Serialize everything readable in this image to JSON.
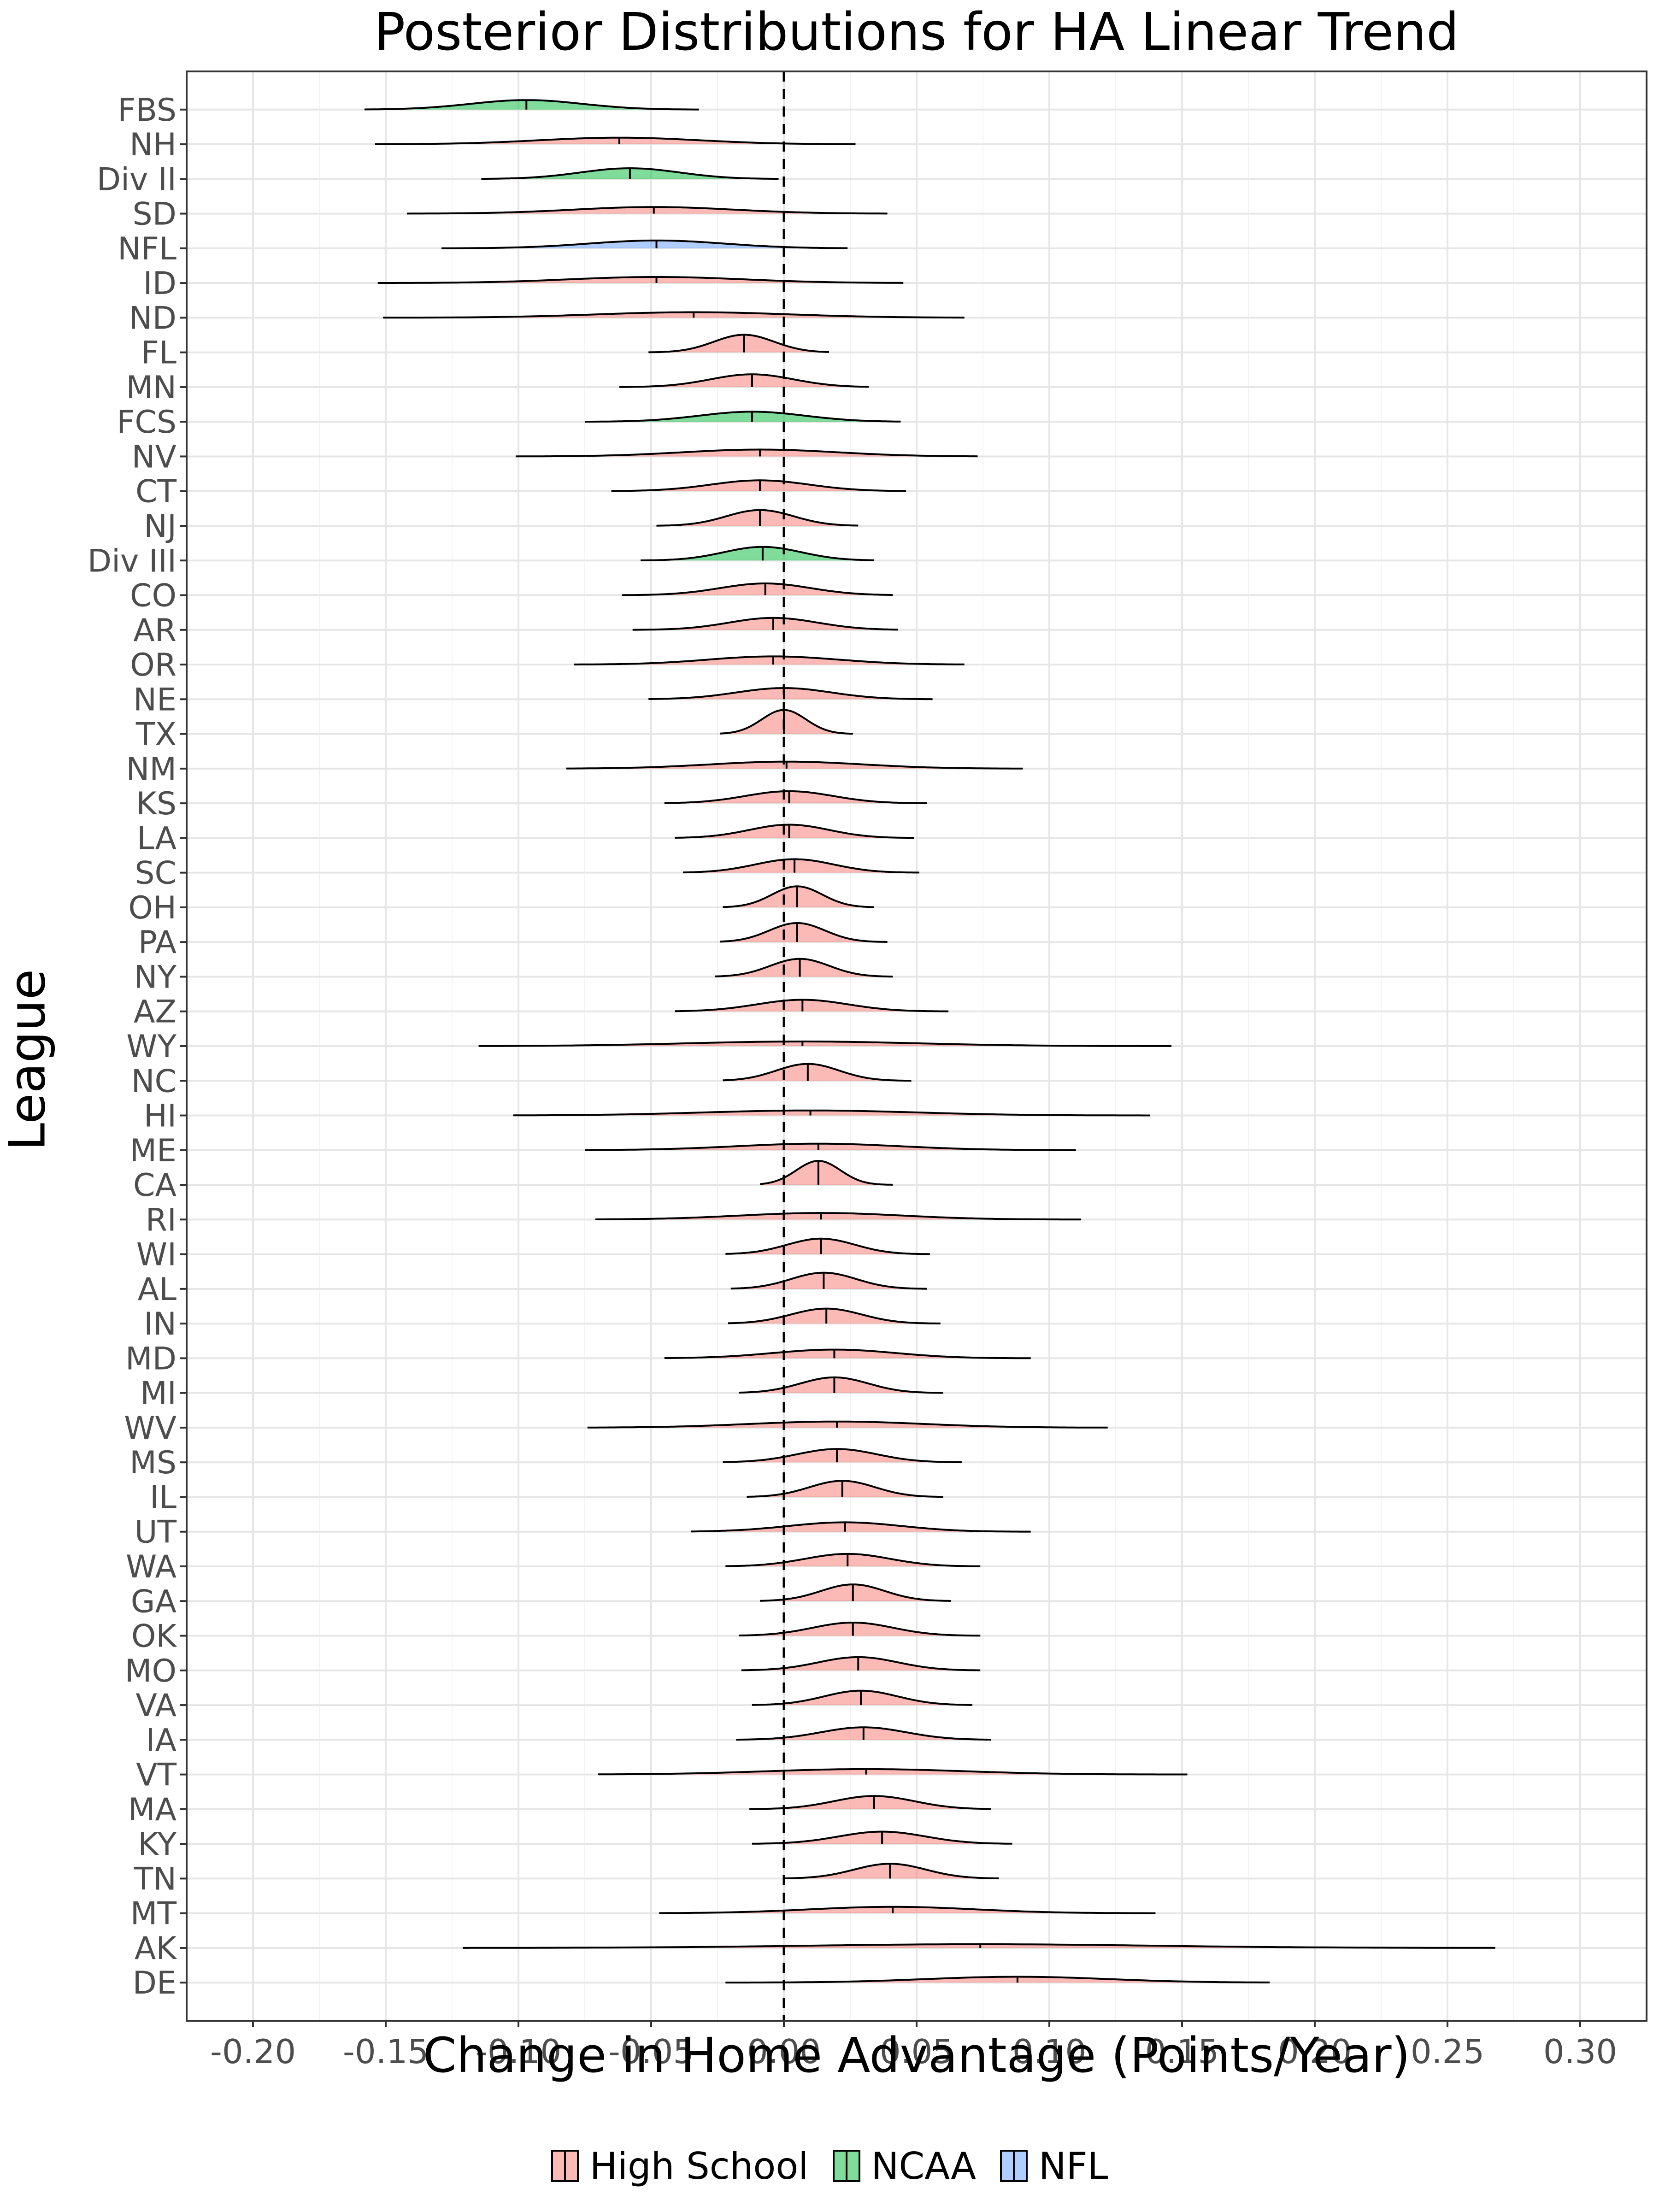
{
  "chart_data": {
    "type": "ridgeline",
    "title": "Posterior Distributions for HA Linear Trend",
    "xlabel": "Change in Home Advantage (Points/Year)",
    "ylabel": "League",
    "xlim": [
      -0.225,
      0.325
    ],
    "x_ticks": [
      -0.2,
      -0.15,
      -0.1,
      -0.05,
      0.0,
      0.05,
      0.1,
      0.15,
      0.2,
      0.25,
      0.3
    ],
    "x_tick_labels": [
      "-0.20",
      "-0.15",
      "-0.10",
      "-0.05",
      "0.00",
      "0.05",
      "0.10",
      "0.15",
      "0.20",
      "0.25",
      "0.30"
    ],
    "reference_line": 0.0,
    "grid": true,
    "legend_position": "bottom",
    "legend": [
      {
        "label": "High School",
        "color": "#F8766D"
      },
      {
        "label": "NCAA",
        "color": "#00BA38"
      },
      {
        "label": "NFL",
        "color": "#619CFF"
      }
    ],
    "series": [
      {
        "league": "FBS",
        "group": "NCAA",
        "mean": -0.097,
        "min": -0.158,
        "max": -0.032
      },
      {
        "league": "NH",
        "group": "High School",
        "mean": -0.062,
        "min": -0.154,
        "max": 0.027
      },
      {
        "league": "Div II",
        "group": "NCAA",
        "mean": -0.058,
        "min": -0.114,
        "max": -0.002
      },
      {
        "league": "SD",
        "group": "High School",
        "mean": -0.049,
        "min": -0.142,
        "max": 0.039
      },
      {
        "league": "NFL",
        "group": "NFL",
        "mean": -0.048,
        "min": -0.129,
        "max": 0.024
      },
      {
        "league": "ID",
        "group": "High School",
        "mean": -0.048,
        "min": -0.153,
        "max": 0.045
      },
      {
        "league": "ND",
        "group": "High School",
        "mean": -0.034,
        "min": -0.151,
        "max": 0.068
      },
      {
        "league": "FL",
        "group": "High School",
        "mean": -0.015,
        "min": -0.051,
        "max": 0.017
      },
      {
        "league": "MN",
        "group": "High School",
        "mean": -0.012,
        "min": -0.062,
        "max": 0.032
      },
      {
        "league": "FCS",
        "group": "NCAA",
        "mean": -0.012,
        "min": -0.075,
        "max": 0.044
      },
      {
        "league": "NV",
        "group": "High School",
        "mean": -0.009,
        "min": -0.101,
        "max": 0.073
      },
      {
        "league": "CT",
        "group": "High School",
        "mean": -0.009,
        "min": -0.065,
        "max": 0.046
      },
      {
        "league": "NJ",
        "group": "High School",
        "mean": -0.009,
        "min": -0.048,
        "max": 0.028
      },
      {
        "league": "Div III",
        "group": "NCAA",
        "mean": -0.008,
        "min": -0.054,
        "max": 0.034
      },
      {
        "league": "CO",
        "group": "High School",
        "mean": -0.007,
        "min": -0.061,
        "max": 0.041
      },
      {
        "league": "AR",
        "group": "High School",
        "mean": -0.004,
        "min": -0.057,
        "max": 0.043
      },
      {
        "league": "OR",
        "group": "High School",
        "mean": -0.004,
        "min": -0.079,
        "max": 0.068
      },
      {
        "league": "NE",
        "group": "High School",
        "mean": 0.0,
        "min": -0.051,
        "max": 0.056
      },
      {
        "league": "TX",
        "group": "High School",
        "mean": 0.0,
        "min": -0.024,
        "max": 0.026
      },
      {
        "league": "NM",
        "group": "High School",
        "mean": 0.001,
        "min": -0.082,
        "max": 0.09
      },
      {
        "league": "KS",
        "group": "High School",
        "mean": 0.002,
        "min": -0.045,
        "max": 0.054
      },
      {
        "league": "LA",
        "group": "High School",
        "mean": 0.002,
        "min": -0.041,
        "max": 0.049
      },
      {
        "league": "SC",
        "group": "High School",
        "mean": 0.004,
        "min": -0.038,
        "max": 0.051
      },
      {
        "league": "OH",
        "group": "High School",
        "mean": 0.005,
        "min": -0.023,
        "max": 0.034
      },
      {
        "league": "PA",
        "group": "High School",
        "mean": 0.005,
        "min": -0.024,
        "max": 0.039
      },
      {
        "league": "NY",
        "group": "High School",
        "mean": 0.006,
        "min": -0.026,
        "max": 0.041
      },
      {
        "league": "AZ",
        "group": "High School",
        "mean": 0.007,
        "min": -0.041,
        "max": 0.062
      },
      {
        "league": "WY",
        "group": "High School",
        "mean": 0.007,
        "min": -0.115,
        "max": 0.146
      },
      {
        "league": "NC",
        "group": "High School",
        "mean": 0.009,
        "min": -0.023,
        "max": 0.048
      },
      {
        "league": "HI",
        "group": "High School",
        "mean": 0.01,
        "min": -0.102,
        "max": 0.138
      },
      {
        "league": "ME",
        "group": "High School",
        "mean": 0.013,
        "min": -0.075,
        "max": 0.11
      },
      {
        "league": "CA",
        "group": "High School",
        "mean": 0.013,
        "min": -0.009,
        "max": 0.041
      },
      {
        "league": "RI",
        "group": "High School",
        "mean": 0.014,
        "min": -0.071,
        "max": 0.112
      },
      {
        "league": "WI",
        "group": "High School",
        "mean": 0.014,
        "min": -0.022,
        "max": 0.055
      },
      {
        "league": "AL",
        "group": "High School",
        "mean": 0.015,
        "min": -0.02,
        "max": 0.054
      },
      {
        "league": "IN",
        "group": "High School",
        "mean": 0.016,
        "min": -0.021,
        "max": 0.059
      },
      {
        "league": "MD",
        "group": "High School",
        "mean": 0.019,
        "min": -0.045,
        "max": 0.093
      },
      {
        "league": "MI",
        "group": "High School",
        "mean": 0.019,
        "min": -0.017,
        "max": 0.06
      },
      {
        "league": "WV",
        "group": "High School",
        "mean": 0.02,
        "min": -0.074,
        "max": 0.122
      },
      {
        "league": "MS",
        "group": "High School",
        "mean": 0.02,
        "min": -0.023,
        "max": 0.067
      },
      {
        "league": "IL",
        "group": "High School",
        "mean": 0.022,
        "min": -0.014,
        "max": 0.06
      },
      {
        "league": "UT",
        "group": "High School",
        "mean": 0.023,
        "min": -0.035,
        "max": 0.093
      },
      {
        "league": "WA",
        "group": "High School",
        "mean": 0.024,
        "min": -0.022,
        "max": 0.074
      },
      {
        "league": "GA",
        "group": "High School",
        "mean": 0.026,
        "min": -0.009,
        "max": 0.063
      },
      {
        "league": "OK",
        "group": "High School",
        "mean": 0.026,
        "min": -0.017,
        "max": 0.074
      },
      {
        "league": "MO",
        "group": "High School",
        "mean": 0.028,
        "min": -0.016,
        "max": 0.074
      },
      {
        "league": "VA",
        "group": "High School",
        "mean": 0.029,
        "min": -0.012,
        "max": 0.071
      },
      {
        "league": "IA",
        "group": "High School",
        "mean": 0.03,
        "min": -0.018,
        "max": 0.078
      },
      {
        "league": "VT",
        "group": "High School",
        "mean": 0.031,
        "min": -0.07,
        "max": 0.152
      },
      {
        "league": "MA",
        "group": "High School",
        "mean": 0.034,
        "min": -0.013,
        "max": 0.078
      },
      {
        "league": "KY",
        "group": "High School",
        "mean": 0.037,
        "min": -0.012,
        "max": 0.086
      },
      {
        "league": "TN",
        "group": "High School",
        "mean": 0.04,
        "min": 0.0,
        "max": 0.081
      },
      {
        "league": "MT",
        "group": "High School",
        "mean": 0.041,
        "min": -0.047,
        "max": 0.14
      },
      {
        "league": "AK",
        "group": "High School",
        "mean": 0.074,
        "min": -0.121,
        "max": 0.268
      },
      {
        "league": "DE",
        "group": "High School",
        "mean": 0.088,
        "min": -0.022,
        "max": 0.183
      }
    ]
  }
}
